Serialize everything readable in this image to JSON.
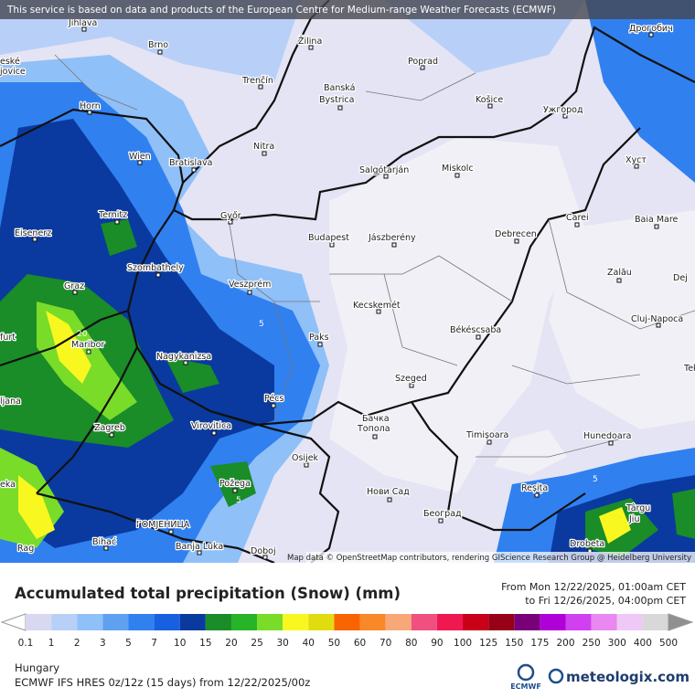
{
  "header": {
    "notice": "This service is based on data and products of the European Centre for Medium-range Weather Forecasts (ECMWF)"
  },
  "map": {
    "cities": [
      "Jihlava",
      "Brno",
      "Žilina",
      "Poprad",
      "Дрогобич",
      "Trenčín",
      "Banská",
      "Bystrica",
      "Košice",
      "Ужгород",
      "Horn",
      "Nitra",
      "Salgótarján",
      "Miskolc",
      "Хуст",
      "Wien",
      "Bratislava",
      "Ternitz",
      "Győr",
      "Budapest",
      "Jászberény",
      "Debrecen",
      "Carei",
      "Baia Mare",
      "Eisenerz",
      "Szombathely",
      "Zalău",
      "Graz",
      "Veszprém",
      "Kecskemét",
      "Cluj-Napoca",
      "Paks",
      "Békéscsaba",
      "Maribor",
      "Nagykanizsa",
      "Pécs",
      "Szeged",
      "Virovitica",
      "Бачка",
      "Топола",
      "Timișoara",
      "Hunedoara",
      "Zagreb",
      "Osijek",
      "Požega",
      "Нови Сад",
      "Reșița",
      "Târgu",
      "Jiu",
      "ГОМЈЕНИЦА",
      "Bihać",
      "Banja Luka",
      "Doboj",
      "Београд",
      "Drobeta",
      "eské",
      "jovice",
      "furt",
      "ljana",
      "eka",
      "Rag",
      "Dej",
      "Tek"
    ],
    "contour_labels": [
      "20",
      "5",
      "5",
      "5",
      "5"
    ],
    "attribution": "Map data © OpenStreetMap contributors, rendering GIScience Research Group @ Heidelberg University"
  },
  "legend": {
    "title": "Accumulated total precipitation (Snow) (mm)",
    "from": "From Mon 12/22/2025, 01:00am CET",
    "to": "to Fri 12/26/2025, 04:00pm CET",
    "levels": [
      0.1,
      1,
      2,
      3,
      5,
      7,
      10,
      15,
      20,
      25,
      30,
      40,
      50,
      60,
      70,
      80,
      90,
      100,
      125,
      150,
      175,
      200,
      250,
      300,
      400,
      500
    ],
    "colors": [
      "#d8d8f0",
      "#b8d0f8",
      "#90c0f8",
      "#60a0f0",
      "#3080f0",
      "#1860e0",
      "#0a3aa0",
      "#1a8c28",
      "#28b428",
      "#78dc28",
      "#f8f820",
      "#e0dc10",
      "#f86400",
      "#f88828",
      "#f8a878",
      "#f05080",
      "#f01850",
      "#c80018",
      "#980018",
      "#780078",
      "#b000d8",
      "#d040f0",
      "#e888f0",
      "#f0c8f8",
      "#d8d8d8"
    ],
    "under_color": "#ffffff",
    "over_color": "#909090"
  },
  "footer": {
    "region": "Hungary",
    "model": "ECMWF IFS HRES 0z/12z (15 days) from 12/22/2025/00z",
    "ecmwf_logo": "ECMWF",
    "brand": "meteologix.com"
  }
}
